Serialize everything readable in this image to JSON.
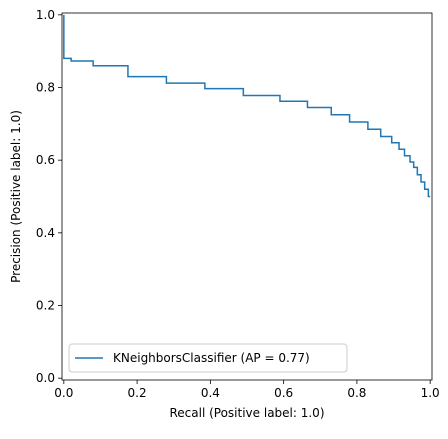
{
  "chart_data": {
    "type": "line",
    "title": "",
    "xlabel": "Recall (Positive label: 1.0)",
    "ylabel": "Precision (Positive label: 1.0)",
    "xlim": [
      -0.005,
      1.005
    ],
    "ylim": [
      -0.005,
      1.005
    ],
    "xticks": [
      "0.0",
      "0.2",
      "0.4",
      "0.6",
      "0.8",
      "1.0"
    ],
    "yticks": [
      "0.0",
      "0.2",
      "0.4",
      "0.6",
      "0.8",
      "1.0"
    ],
    "grid": false,
    "legend_position": "lower-left",
    "drawstyle": "steps-post",
    "series": [
      {
        "name": "KNeighborsClassifier (AP = 0.77)",
        "color": "#1f77b4",
        "recall": [
          0.0,
          0.0,
          0.0,
          0.02,
          0.08,
          0.175,
          0.28,
          0.385,
          0.49,
          0.59,
          0.665,
          0.73,
          0.78,
          0.83,
          0.865,
          0.895,
          0.915,
          0.93,
          0.945,
          0.955,
          0.965,
          0.975,
          0.985,
          0.995,
          1.0
        ],
        "precision": [
          1.0,
          0.88,
          0.88,
          0.873,
          0.86,
          0.83,
          0.812,
          0.797,
          0.778,
          0.762,
          0.745,
          0.725,
          0.705,
          0.685,
          0.665,
          0.648,
          0.63,
          0.612,
          0.595,
          0.58,
          0.56,
          0.54,
          0.52,
          0.5,
          0.5
        ]
      }
    ]
  }
}
